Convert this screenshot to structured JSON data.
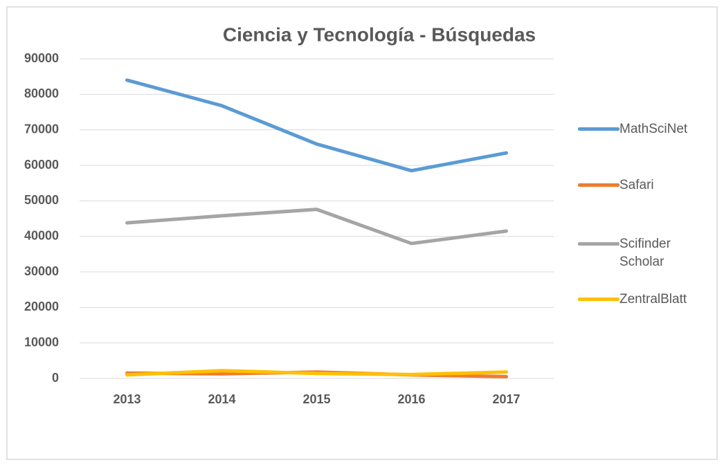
{
  "chart_data": {
    "type": "line",
    "title": "Ciencia y Tecnología - Búsquedas",
    "categories": [
      "2013",
      "2014",
      "2015",
      "2016",
      "2017"
    ],
    "series": [
      {
        "name": "MathSciNet",
        "color": "#5b9bd5",
        "values": [
          84000,
          76800,
          66000,
          58500,
          63500
        ]
      },
      {
        "name": "Safari",
        "color": "#ed7d31",
        "values": [
          1500,
          1300,
          1800,
          1000,
          500
        ]
      },
      {
        "name": "Scifinder Scholar",
        "color": "#a5a5a5",
        "values": [
          43800,
          45800,
          47600,
          38000,
          41500
        ]
      },
      {
        "name": "ZentralBlatt",
        "color": "#ffc000",
        "values": [
          1000,
          2200,
          1400,
          1100,
          1800
        ]
      }
    ],
    "ylim": [
      0,
      90000
    ],
    "yticks": [
      0,
      10000,
      20000,
      30000,
      40000,
      50000,
      60000,
      70000,
      80000,
      90000
    ],
    "grid": true,
    "legend": "right"
  }
}
